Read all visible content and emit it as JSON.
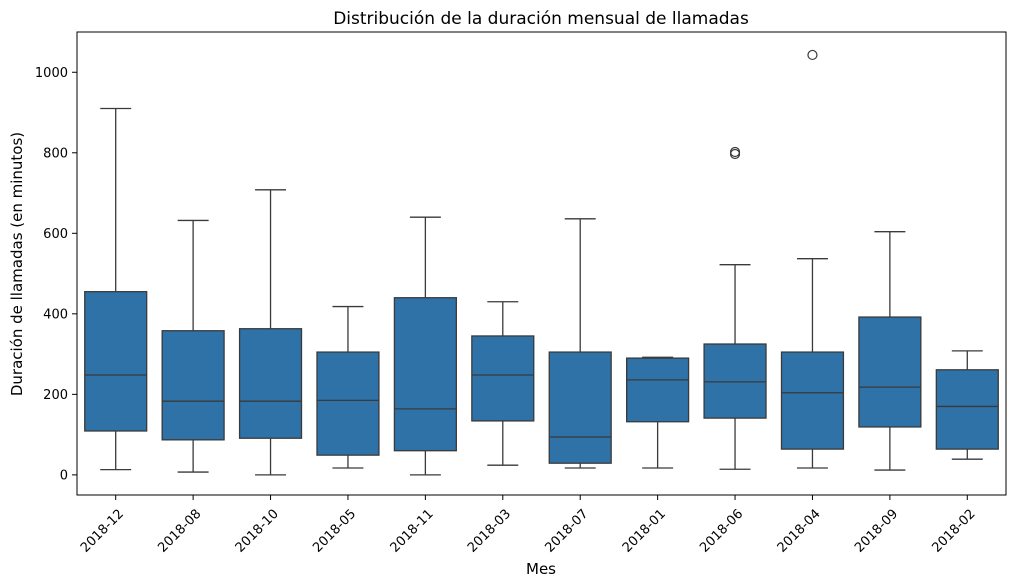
{
  "chart_data": {
    "type": "box",
    "title": "Distribución de la duración mensual de llamadas",
    "xlabel": "Mes",
    "ylabel": "Duración de llamadas (en minutos)",
    "ylim": [
      -50,
      1100
    ],
    "yticks": [
      0,
      200,
      400,
      600,
      800,
      1000
    ],
    "categories": [
      "2018-12",
      "2018-08",
      "2018-10",
      "2018-05",
      "2018-11",
      "2018-03",
      "2018-07",
      "2018-01",
      "2018-06",
      "2018-04",
      "2018-09",
      "2018-02"
    ],
    "boxes": [
      {
        "min": 13,
        "q1": 109,
        "median": 248,
        "q3": 455,
        "max": 910,
        "outliers": []
      },
      {
        "min": 7,
        "q1": 87,
        "median": 183,
        "q3": 358,
        "max": 632,
        "outliers": []
      },
      {
        "min": 0,
        "q1": 91,
        "median": 183,
        "q3": 363,
        "max": 708,
        "outliers": []
      },
      {
        "min": 17,
        "q1": 49,
        "median": 185,
        "q3": 305,
        "max": 418,
        "outliers": []
      },
      {
        "min": 0,
        "q1": 60,
        "median": 164,
        "q3": 440,
        "max": 640,
        "outliers": []
      },
      {
        "min": 24,
        "q1": 134,
        "median": 248,
        "q3": 345,
        "max": 430,
        "outliers": []
      },
      {
        "min": 17,
        "q1": 29,
        "median": 94,
        "q3": 305,
        "max": 636,
        "outliers": []
      },
      {
        "min": 17,
        "q1": 132,
        "median": 236,
        "q3": 290,
        "max": 292,
        "outliers": []
      },
      {
        "min": 14,
        "q1": 141,
        "median": 231,
        "q3": 325,
        "max": 522,
        "outliers": [
          797,
          802
        ]
      },
      {
        "min": 17,
        "q1": 64,
        "median": 204,
        "q3": 305,
        "max": 537,
        "outliers": [
          1043
        ]
      },
      {
        "min": 12,
        "q1": 119,
        "median": 218,
        "q3": 392,
        "max": 604,
        "outliers": []
      },
      {
        "min": 39,
        "q1": 64,
        "median": 170,
        "q3": 261,
        "max": 308,
        "outliers": []
      }
    ],
    "box_color": "#2e72a8",
    "line_color": "#3a3a3a",
    "grid": false,
    "legend": false
  }
}
